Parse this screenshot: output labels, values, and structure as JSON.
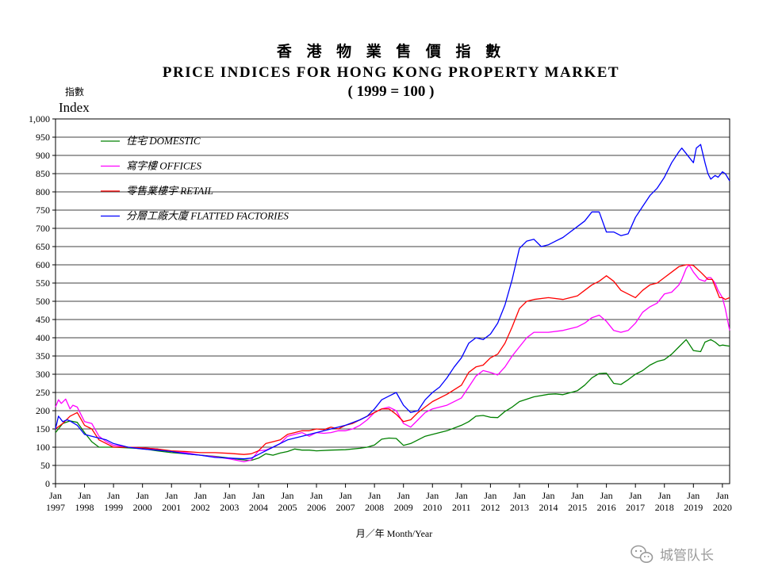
{
  "chart_data": {
    "type": "line",
    "title_zh": "香 港 物 業 售 價 指 數",
    "title": "PRICE INDICES FOR HONG KONG PROPERTY MARKET",
    "subtitle": "( 1999 = 100 )",
    "ylabel_zh": "指數",
    "ylabel": "Index",
    "xlabel": "月／年 Month/Year",
    "ylim": [
      0,
      1000
    ],
    "y_ticks": [
      "0",
      "50",
      "100",
      "150",
      "200",
      "250",
      "300",
      "350",
      "400",
      "450",
      "500",
      "550",
      "600",
      "650",
      "700",
      "750",
      "800",
      "850",
      "900",
      "950",
      "1,000"
    ],
    "x_range": [
      1997.0,
      2020.25
    ],
    "x_ticks": [
      {
        "month": "Jan",
        "year": "1997"
      },
      {
        "month": "Jan",
        "year": "1998"
      },
      {
        "month": "Jan",
        "year": "1999"
      },
      {
        "month": "Jan",
        "year": "2000"
      },
      {
        "month": "Jan",
        "year": "2001"
      },
      {
        "month": "Jan",
        "year": "2002"
      },
      {
        "month": "Jan",
        "year": "2003"
      },
      {
        "month": "Jan",
        "year": "2004"
      },
      {
        "month": "Jan",
        "year": "2005"
      },
      {
        "month": "Jan",
        "year": "2006"
      },
      {
        "month": "Jan",
        "year": "2007"
      },
      {
        "month": "Jan",
        "year": "2008"
      },
      {
        "month": "Jan",
        "year": "2009"
      },
      {
        "month": "Jan",
        "year": "2010"
      },
      {
        "month": "Jan",
        "year": "2011"
      },
      {
        "month": "Jan",
        "year": "2012"
      },
      {
        "month": "Jan",
        "year": "2013"
      },
      {
        "month": "Jan",
        "year": "2014"
      },
      {
        "month": "Jan",
        "year": "2015"
      },
      {
        "month": "Jan",
        "year": "2016"
      },
      {
        "month": "Jan",
        "year": "2017"
      },
      {
        "month": "Jan",
        "year": "2018"
      },
      {
        "month": "Jan",
        "year": "2019"
      },
      {
        "month": "Jan",
        "year": "2020"
      }
    ],
    "grid": "horizontal",
    "legend_position": "top-left",
    "series": [
      {
        "name": "住宅 DOMESTIC",
        "color": "#008000",
        "x": [
          1997.0,
          1997.25,
          1997.5,
          1997.75,
          1998.0,
          1998.25,
          1998.5,
          1998.75,
          1999.0,
          1999.5,
          2000.0,
          2000.5,
          2001.0,
          2001.5,
          2002.0,
          2002.5,
          2003.0,
          2003.5,
          2003.75,
          2004.0,
          2004.25,
          2004.5,
          2004.75,
          2005.0,
          2005.25,
          2005.5,
          2005.75,
          2006.0,
          2006.5,
          2007.0,
          2007.5,
          2007.75,
          2008.0,
          2008.25,
          2008.5,
          2008.75,
          2009.0,
          2009.25,
          2009.5,
          2009.75,
          2010.0,
          2010.5,
          2011.0,
          2011.25,
          2011.5,
          2011.75,
          2012.0,
          2012.25,
          2012.5,
          2012.75,
          2013.0,
          2013.5,
          2014.0,
          2014.25,
          2014.5,
          2015.0,
          2015.25,
          2015.5,
          2015.75,
          2016.0,
          2016.25,
          2016.5,
          2016.75,
          2017.0,
          2017.25,
          2017.5,
          2017.75,
          2018.0,
          2018.25,
          2018.5,
          2018.75,
          2019.0,
          2019.25,
          2019.4,
          2019.6,
          2019.75,
          2019.9,
          2020.0,
          2020.25
        ],
        "values": [
          140,
          165,
          172,
          168,
          140,
          115,
          100,
          100,
          100,
          98,
          96,
          90,
          85,
          82,
          78,
          75,
          70,
          65,
          64,
          70,
          82,
          78,
          84,
          88,
          95,
          92,
          92,
          90,
          92,
          93,
          97,
          100,
          106,
          122,
          125,
          124,
          105,
          110,
          120,
          130,
          135,
          145,
          160,
          170,
          185,
          187,
          182,
          181,
          198,
          210,
          225,
          238,
          245,
          246,
          244,
          255,
          270,
          290,
          302,
          303,
          275,
          272,
          285,
          300,
          310,
          325,
          335,
          340,
          355,
          375,
          395,
          365,
          362,
          388,
          395,
          388,
          378,
          380,
          377
        ]
      },
      {
        "name": "寫字樓 OFFICES",
        "color": "#ff00ff",
        "x": [
          1997.0,
          1997.1,
          1997.2,
          1997.35,
          1997.5,
          1997.6,
          1997.75,
          1998.0,
          1998.25,
          1998.5,
          1998.75,
          1999.0,
          1999.5,
          2000.0,
          2000.5,
          2001.0,
          2001.5,
          2002.0,
          2002.5,
          2003.0,
          2003.5,
          2003.75,
          2004.0,
          2004.25,
          2004.5,
          2004.75,
          2005.0,
          2005.25,
          2005.5,
          2005.75,
          2006.0,
          2006.25,
          2006.5,
          2006.75,
          2007.0,
          2007.25,
          2007.5,
          2007.75,
          2008.0,
          2008.25,
          2008.5,
          2008.75,
          2009.0,
          2009.25,
          2009.5,
          2009.75,
          2010.0,
          2010.5,
          2011.0,
          2011.25,
          2011.5,
          2011.75,
          2012.0,
          2012.25,
          2012.5,
          2012.75,
          2013.0,
          2013.25,
          2013.5,
          2014.0,
          2014.5,
          2015.0,
          2015.25,
          2015.5,
          2015.75,
          2016.0,
          2016.25,
          2016.5,
          2016.75,
          2017.0,
          2017.25,
          2017.5,
          2017.75,
          2018.0,
          2018.25,
          2018.5,
          2018.6,
          2018.75,
          2018.85,
          2019.0,
          2019.2,
          2019.4,
          2019.5,
          2019.6,
          2019.75,
          2019.85,
          2020.0,
          2020.1,
          2020.25
        ],
        "values": [
          210,
          230,
          220,
          232,
          205,
          215,
          210,
          170,
          165,
          130,
          115,
          105,
          100,
          98,
          95,
          88,
          85,
          78,
          74,
          68,
          60,
          65,
          90,
          92,
          100,
          110,
          130,
          135,
          140,
          130,
          140,
          138,
          140,
          145,
          145,
          150,
          160,
          175,
          195,
          205,
          210,
          200,
          165,
          155,
          175,
          195,
          205,
          215,
          235,
          265,
          295,
          310,
          305,
          298,
          320,
          350,
          375,
          400,
          415,
          415,
          420,
          430,
          440,
          455,
          462,
          445,
          420,
          415,
          420,
          440,
          470,
          485,
          495,
          520,
          525,
          545,
          560,
          590,
          600,
          580,
          560,
          555,
          565,
          565,
          550,
          530,
          510,
          480,
          420
        ]
      },
      {
        "name": "零售業樓宇 RETAIL",
        "color": "#ff0000",
        "x": [
          1997.0,
          1997.25,
          1997.5,
          1997.75,
          1998.0,
          1998.25,
          1998.5,
          1998.75,
          1999.0,
          1999.5,
          2000.0,
          2000.5,
          2001.0,
          2001.5,
          2002.0,
          2002.5,
          2003.0,
          2003.5,
          2003.75,
          2004.0,
          2004.25,
          2004.5,
          2004.75,
          2005.0,
          2005.25,
          2005.5,
          2005.75,
          2006.0,
          2006.25,
          2006.5,
          2006.75,
          2007.0,
          2007.25,
          2007.5,
          2007.75,
          2008.0,
          2008.25,
          2008.5,
          2008.75,
          2009.0,
          2009.25,
          2009.5,
          2009.75,
          2010.0,
          2010.5,
          2011.0,
          2011.25,
          2011.5,
          2011.75,
          2012.0,
          2012.25,
          2012.5,
          2012.75,
          2013.0,
          2013.25,
          2013.5,
          2014.0,
          2014.5,
          2015.0,
          2015.25,
          2015.5,
          2015.75,
          2016.0,
          2016.25,
          2016.5,
          2016.75,
          2017.0,
          2017.25,
          2017.5,
          2017.75,
          2018.0,
          2018.25,
          2018.5,
          2018.75,
          2018.85,
          2019.0,
          2019.25,
          2019.5,
          2019.65,
          2019.75,
          2019.9,
          2020.0,
          2020.1,
          2020.25
        ],
        "values": [
          150,
          165,
          185,
          195,
          160,
          150,
          120,
          110,
          100,
          100,
          98,
          95,
          90,
          88,
          85,
          85,
          83,
          80,
          82,
          90,
          110,
          115,
          120,
          135,
          140,
          145,
          145,
          150,
          148,
          155,
          150,
          160,
          165,
          175,
          185,
          195,
          205,
          205,
          190,
          170,
          175,
          195,
          210,
          225,
          245,
          270,
          305,
          320,
          325,
          345,
          355,
          385,
          430,
          480,
          500,
          505,
          510,
          505,
          515,
          530,
          545,
          555,
          570,
          555,
          530,
          520,
          510,
          530,
          545,
          550,
          565,
          580,
          595,
          600,
          600,
          598,
          580,
          560,
          560,
          540,
          510,
          510,
          505,
          510
        ]
      },
      {
        "name": "分層工廠大廈 FLATTED FACTORIES",
        "color": "#0000ff",
        "x": [
          1997.0,
          1997.1,
          1997.25,
          1997.4,
          1997.5,
          1997.75,
          1998.0,
          1998.25,
          1998.5,
          1998.75,
          1999.0,
          1999.5,
          2000.0,
          2000.5,
          2001.0,
          2001.5,
          2002.0,
          2002.5,
          2003.0,
          2003.5,
          2003.75,
          2004.0,
          2004.25,
          2004.5,
          2004.75,
          2005.0,
          2005.5,
          2006.0,
          2006.5,
          2007.0,
          2007.5,
          2007.75,
          2008.0,
          2008.25,
          2008.5,
          2008.75,
          2009.0,
          2009.25,
          2009.5,
          2009.75,
          2010.0,
          2010.25,
          2010.5,
          2010.75,
          2011.0,
          2011.25,
          2011.5,
          2011.75,
          2012.0,
          2012.25,
          2012.5,
          2012.75,
          2013.0,
          2013.25,
          2013.5,
          2013.75,
          2014.0,
          2014.25,
          2014.5,
          2014.75,
          2015.0,
          2015.25,
          2015.5,
          2015.75,
          2016.0,
          2016.25,
          2016.5,
          2016.75,
          2017.0,
          2017.25,
          2017.5,
          2017.75,
          2018.0,
          2018.25,
          2018.5,
          2018.6,
          2018.75,
          2018.85,
          2019.0,
          2019.1,
          2019.25,
          2019.4,
          2019.5,
          2019.6,
          2019.75,
          2019.85,
          2020.0,
          2020.1,
          2020.25
        ],
        "values": [
          150,
          185,
          170,
          175,
          172,
          160,
          135,
          130,
          125,
          120,
          110,
          100,
          95,
          92,
          88,
          82,
          78,
          72,
          70,
          68,
          70,
          80,
          90,
          100,
          110,
          120,
          130,
          140,
          150,
          160,
          175,
          185,
          205,
          230,
          240,
          250,
          215,
          195,
          200,
          230,
          250,
          265,
          290,
          320,
          345,
          385,
          400,
          395,
          410,
          440,
          490,
          560,
          645,
          665,
          670,
          650,
          655,
          665,
          675,
          690,
          705,
          720,
          745,
          745,
          690,
          690,
          680,
          685,
          730,
          760,
          790,
          810,
          840,
          880,
          910,
          920,
          905,
          895,
          880,
          920,
          930,
          880,
          850,
          835,
          845,
          840,
          855,
          850,
          830
        ]
      }
    ]
  },
  "watermark": "城管队长"
}
